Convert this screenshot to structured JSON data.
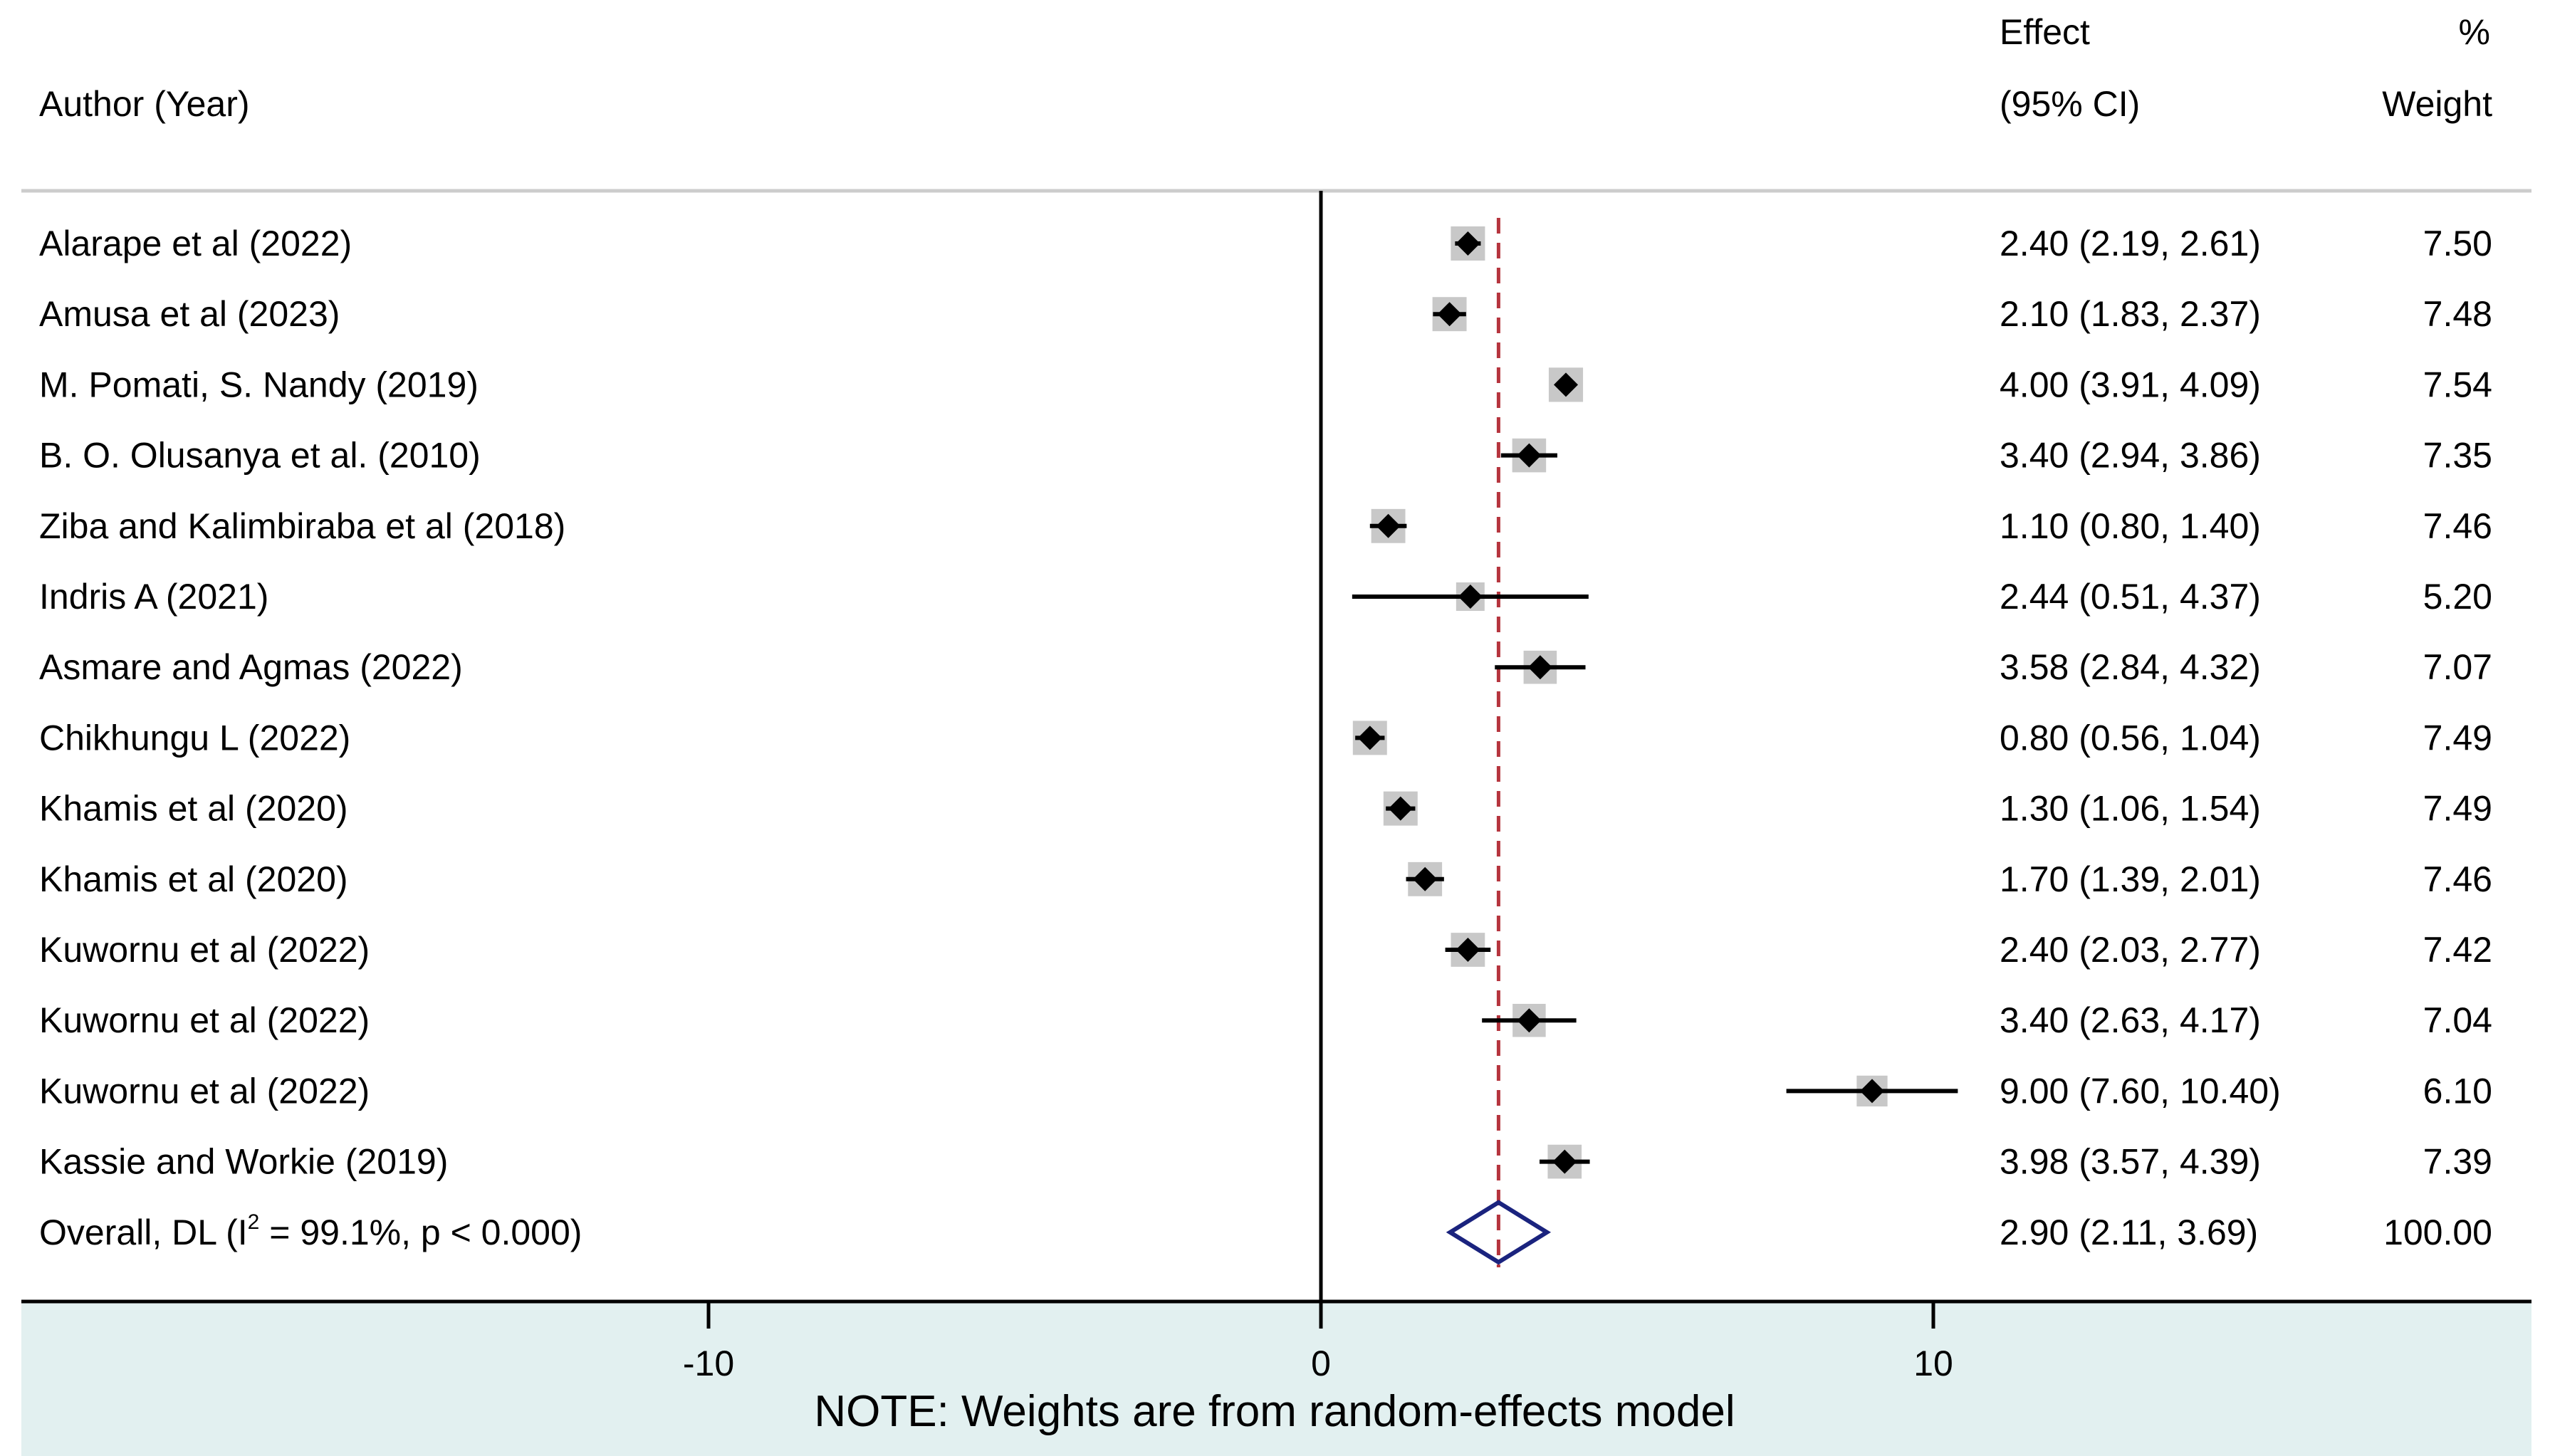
{
  "chart_data": {
    "type": "forest",
    "header": {
      "author": "Author (Year)",
      "effect": "Effect",
      "ci": "(95% CI)",
      "pct": "%",
      "weight": "Weight"
    },
    "studies": [
      {
        "label": "Alarape et al (2022)",
        "effect": 2.4,
        "lower": 2.19,
        "upper": 2.61,
        "text": "2.40 (2.19, 2.61)",
        "weight": "7.50"
      },
      {
        "label": "Amusa et al (2023)",
        "effect": 2.1,
        "lower": 1.83,
        "upper": 2.37,
        "text": "2.10 (1.83, 2.37)",
        "weight": "7.48"
      },
      {
        "label": "M. Pomati, S. Nandy (2019)",
        "effect": 4.0,
        "lower": 3.91,
        "upper": 4.09,
        "text": "4.00 (3.91, 4.09)",
        "weight": "7.54"
      },
      {
        "label": "B. O. Olusanya et al. (2010)",
        "effect": 3.4,
        "lower": 2.94,
        "upper": 3.86,
        "text": "3.40 (2.94, 3.86)",
        "weight": "7.35"
      },
      {
        "label": "Ziba and Kalimbiraba et al (2018)",
        "effect": 1.1,
        "lower": 0.8,
        "upper": 1.4,
        "text": "1.10 (0.80, 1.40)",
        "weight": "7.46"
      },
      {
        "label": "Indris A (2021)",
        "effect": 2.44,
        "lower": 0.51,
        "upper": 4.37,
        "text": "2.44 (0.51, 4.37)",
        "weight": "5.20"
      },
      {
        "label": "Asmare and Agmas (2022)",
        "effect": 3.58,
        "lower": 2.84,
        "upper": 4.32,
        "text": "3.58 (2.84, 4.32)",
        "weight": "7.07"
      },
      {
        "label": "Chikhungu L (2022)",
        "effect": 0.8,
        "lower": 0.56,
        "upper": 1.04,
        "text": "0.80 (0.56, 1.04)",
        "weight": "7.49"
      },
      {
        "label": "Khamis et al (2020)",
        "effect": 1.3,
        "lower": 1.06,
        "upper": 1.54,
        "text": "1.30 (1.06, 1.54)",
        "weight": "7.49"
      },
      {
        "label": "Khamis et al (2020)",
        "effect": 1.7,
        "lower": 1.39,
        "upper": 2.01,
        "text": "1.70 (1.39, 2.01)",
        "weight": "7.46"
      },
      {
        "label": "Kuwornu et al (2022)",
        "effect": 2.4,
        "lower": 2.03,
        "upper": 2.77,
        "text": "2.40 (2.03, 2.77)",
        "weight": "7.42"
      },
      {
        "label": "Kuwornu et al (2022)",
        "effect": 3.4,
        "lower": 2.63,
        "upper": 4.17,
        "text": "3.40 (2.63, 4.17)",
        "weight": "7.04"
      },
      {
        "label": "Kuwornu et al (2022)",
        "effect": 9.0,
        "lower": 7.6,
        "upper": 10.4,
        "text": "9.00 (7.60, 10.40)",
        "weight": "6.10"
      },
      {
        "label": "Kassie and Workie (2019)",
        "effect": 3.98,
        "lower": 3.57,
        "upper": 4.39,
        "text": "3.98 (3.57, 4.39)",
        "weight": "7.39"
      }
    ],
    "overall": {
      "label_pre": "Overall, DL (I",
      "label_sup": "2",
      "label_post": " = 99.1%, p < 0.000)",
      "effect": 2.9,
      "lower": 2.11,
      "upper": 3.69,
      "text": "2.90 (2.11, 3.69)",
      "weight": "100.00"
    },
    "x_axis": {
      "ticks": [
        -10,
        0,
        10
      ],
      "tick_labels": [
        "-10",
        "0",
        "10"
      ],
      "range": [
        -21.5,
        19.5
      ]
    },
    "note": "NOTE: Weights are from random-effects model",
    "colors": {
      "reference_line": "#b5343d",
      "overall_diamond": "#1a237e",
      "weight_box": "#c8c8c8",
      "note_band": "#e2f0f0",
      "separator": "#cccccc"
    }
  }
}
